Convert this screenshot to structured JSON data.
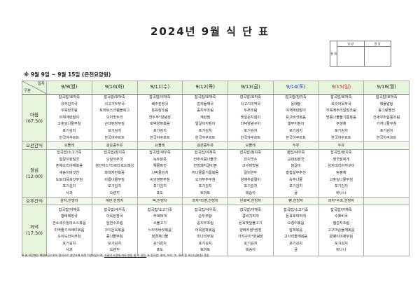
{
  "title": "2024년 9월 식 단 표",
  "approval": {
    "side_label": "결 재",
    "col1": "영 양",
    "col2": "원 장"
  },
  "subtitle": "※ 9월 9일 ~ 9월 15일 (은천요양원)",
  "header": {
    "corner_top": "일자",
    "corner_bottom": "구분"
  },
  "colors": {
    "header_bg": "#e6f5dc",
    "saturday": "#2233cc",
    "sunday": "#dd2222"
  },
  "meals": [
    {
      "key": "breakfast",
      "label": "아침",
      "time": "(07:30)"
    },
    {
      "key": "am_snack",
      "label": "오전간식",
      "time": ""
    },
    {
      "key": "lunch",
      "label": "점심",
      "time": "(12:00)"
    },
    {
      "key": "pm_snack",
      "label": "오후간식",
      "time": ""
    },
    {
      "key": "dinner",
      "label": "저녁",
      "time": "(17:30)"
    }
  ],
  "days": [
    {
      "date": "9/9(월)",
      "color": "#222222",
      "breakfast": [
        "잡곡밥/호박죽",
        "유부김치국",
        "우육장조림",
        "야채계란말이",
        "고춧잎나물무침",
        "포기김치",
        "한국야쿠르트"
      ],
      "am_snack": "요플레",
      "lunch": [
        "잡곡밥/소고기죽",
        "얼갈이된장국",
        "훈제오리야채볶음",
        "새송이버섯전",
        "도토리묵쑥갓무침",
        "포기김치",
        "사과"
      ],
      "pm_snack": "감자,한방차",
      "dinner": [
        "잡곡밥/야채죽",
        "황태해장국",
        "깐쇼새우칠리소스볶음",
        "미역줄기크래미볶음",
        "오이도라지무침",
        "포기김치",
        "사과"
      ]
    },
    {
      "date": "9/10(화)",
      "color": "#222222",
      "breakfast": [
        "잡곡밥/호박죽",
        "쇠고기두부국",
        "토마토스크램블에그",
        "오이맛두리",
        "근대된장무침",
        "포기김치",
        "한국야쿠르트"
      ],
      "am_snack": "검은콩두유",
      "lunch": [
        "잡곡밥/참치죽",
        "오징어무국",
        "생선까스*타르타르드레싱",
        "파래자반볶음",
        "비름나물무침",
        "포기김치",
        "오렌지"
      ],
      "pm_snack": "계란,한방차",
      "dinner": [
        "잡곡밥/새우죽",
        "아욱된장국",
        "임연수조림",
        "가지돈육볶음",
        "콩나물무침",
        "포기김치",
        "오렌지"
      ]
    },
    {
      "date": "9/11(수)",
      "color": "#222222",
      "breakfast": [
        "잡곡밥/야채죽",
        "배추된장국",
        "돈육장조림",
        "연두부*양념장",
        "호박양파볶음",
        "포기김치",
        "한국야쿠르트"
      ],
      "am_snack": "요플레",
      "lunch": [
        "잡곡밥/새우죽",
        "녹두닭죽",
        "해물파전",
        "나박물김치",
        "씨앗쌈장무침",
        "포기김치",
        "포도"
      ],
      "pm_snack": "떡,한방차",
      "dinner": [
        "잡곡밥/소고기죽",
        "부대찌개",
        "소불고기",
        "느타리버섯볶음",
        "청경채나물",
        "포기김치",
        "포도"
      ]
    },
    {
      "date": "9/12(목)",
      "color": "#222222",
      "breakfast": [
        "잡곡밥/호박죽",
        "감자들깨국",
        "꽁치무조림",
        "계란찜",
        "얼갈이지짐이",
        "포기김치",
        "한국야쿠르트"
      ],
      "am_snack": "검은콩두유",
      "lunch": [
        "잡곡밥/야채죽",
        "전주식콩나물국",
        "한방돼지갈비찜",
        "취나물들기름볶음",
        "오이부추무침",
        "포기김치",
        "토마토"
      ],
      "pm_snack": "과자*라면,한방차",
      "dinner": [
        "잡곡밥/새우죽",
        "순두부탕",
        "꽁치무조림",
        "어묵양파볶음",
        "미나리무침",
        "포기김치",
        "토마토"
      ]
    },
    {
      "date": "9/13(금)",
      "color": "#222222",
      "breakfast": [
        "잡곡밥/호박죽",
        "쇠고기미역국",
        "두부조림",
        "깻잎순지짐이",
        "더덕양념구이",
        "포기김치",
        "한국야쿠르트"
      ],
      "am_snack": "요플레",
      "lunch": [
        "잡곡밥/참치죽",
        "잔치국수",
        "고구마맛탕",
        "갈비만두",
        "양배추겉절이",
        "포기김치",
        "복숭아"
      ],
      "pm_snack": "단호박,한방차",
      "dinner": [
        "잡곡밥/야채죽",
        "콩비지찌개",
        "돈육깻잎불고기",
        "양배추쌈*쌈장",
        "가지구이*양념장",
        "포기김치",
        "복숭아"
      ]
    },
    {
      "date": "9/14(토)",
      "color": "#2233cc",
      "breakfast": [
        "잡곡밥/참치죽",
        "동태탕",
        "야채계란말이",
        "표고버섯볶음",
        "열무지짐이",
        "포기김치",
        "한국야쿠르트"
      ],
      "am_snack": "두유",
      "lunch": [
        "찰밥/새우죽",
        "근대된장국",
        "닭갈비",
        "홍합살부추전",
        "숙주나물",
        "포기김치",
        "귤"
      ],
      "pm_snack": "빵,한방차",
      "dinner": [
        "잡곡밥/소고기죽",
        "돈육호박찌개",
        "오징어볶음",
        "잡채볶음",
        "고사리들깨볶음",
        "포기김치",
        "귤"
      ]
    },
    {
      "date": "9/15(일)",
      "color": "#dd2222",
      "breakfast": [
        "잡곡밥/호박죽",
        "쑥갓어묵무국",
        "우육메추리알장조림",
        "방풍나물들기름볶음",
        "무생채",
        "포기김치",
        "한국야쿠르트"
      ],
      "am_snack": "두유",
      "lunch": [
        "잡곡밥/참치죽",
        "청국장찌개",
        "삼치데리야끼구이",
        "탕평채",
        "고춧잎나물무침",
        "포기김치",
        "바나나"
      ],
      "pm_snack": "과자*수프,한방차",
      "dinner": [
        "잡곡밥/야채죽",
        "수제비국",
        "햄감자조림",
        "고구마순들깨볶음",
        "골뱅이야채무침",
        "포기김치",
        "바나나"
      ]
    },
    {
      "date": "9/16(월)",
      "color": "#222222",
      "breakfast": [
        "잡곡밥/호박죽",
        "해물알탕",
        "동그랑땡전",
        "건새우마늘쫑조림",
        "가지나물무침",
        "포기김치",
        "한국야쿠르트"
      ],
      "am_snack": "",
      "lunch": [],
      "pm_snack": "",
      "dinner": []
    }
  ],
  "footnote": {
    "part1": "※ 본 식단표는 해밀러푸드와의 협의으로 영양사에 의해 작성되었으며, ",
    "part2": "기관의 사정에 따라 변동 될 수 있음.",
    "part3": " ※ 잡곡밥: 현미, 보리, 조, 흑미 중 보는(성분중) 혼합"
  }
}
